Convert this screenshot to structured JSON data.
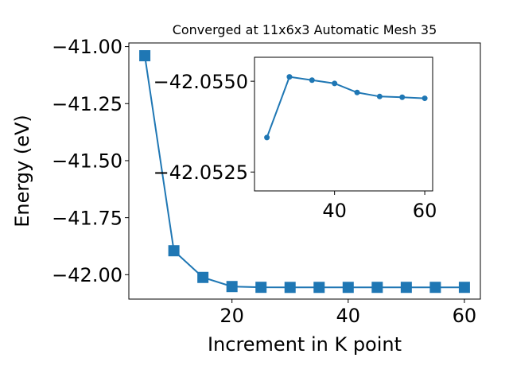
{
  "chart_data": [
    {
      "type": "line",
      "title": "Converged at 11x6x3 Automatic Mesh 35",
      "xlabel": "Increment in K point",
      "ylabel": "Energy (eV)",
      "xlim": [
        2.25,
        62.75
      ],
      "ylim": [
        -42.107,
        -40.984
      ],
      "x_ticks": [
        20,
        40,
        60
      ],
      "y_ticks": [
        -42.0,
        -41.75,
        -41.5,
        -41.25,
        -41.0
      ],
      "x_tick_labels": [
        "20",
        "40",
        "60"
      ],
      "y_tick_labels": [
        "−42.00",
        "−41.75",
        "−41.50",
        "−41.25",
        "−41.00"
      ],
      "grid": false,
      "series": [
        {
          "marker": "square",
          "color": "#1f77b4",
          "x": [
            5,
            10,
            15,
            20,
            25,
            30,
            35,
            40,
            45,
            50,
            55,
            60
          ],
          "y": [
            -41.04,
            -41.895,
            -42.012,
            -42.052,
            -42.0553,
            -42.0557,
            -42.0556,
            -42.0556,
            -42.0555,
            -42.0555,
            -42.0555,
            -42.0555
          ]
        }
      ]
    },
    {
      "type": "line",
      "title": "",
      "xlabel": "",
      "ylabel": "",
      "xlim": [
        22.25,
        61.75
      ],
      "ylim": [
        -42.05566,
        -42.05198
      ],
      "inverted_y": true,
      "x_ticks": [
        40,
        60
      ],
      "y_ticks": [
        -42.055,
        -42.0525
      ],
      "x_tick_labels": [
        "40",
        "60"
      ],
      "y_tick_labels": [
        "−42.0550",
        "−42.0525"
      ],
      "grid": false,
      "series": [
        {
          "marker": "circle",
          "color": "#1f77b4",
          "x": [
            25,
            30,
            35,
            40,
            45,
            50,
            55,
            60
          ],
          "y": [
            -42.05345,
            -42.05512,
            -42.05503,
            -42.05494,
            -42.05469,
            -42.05458,
            -42.05456,
            -42.05453
          ]
        }
      ]
    }
  ]
}
